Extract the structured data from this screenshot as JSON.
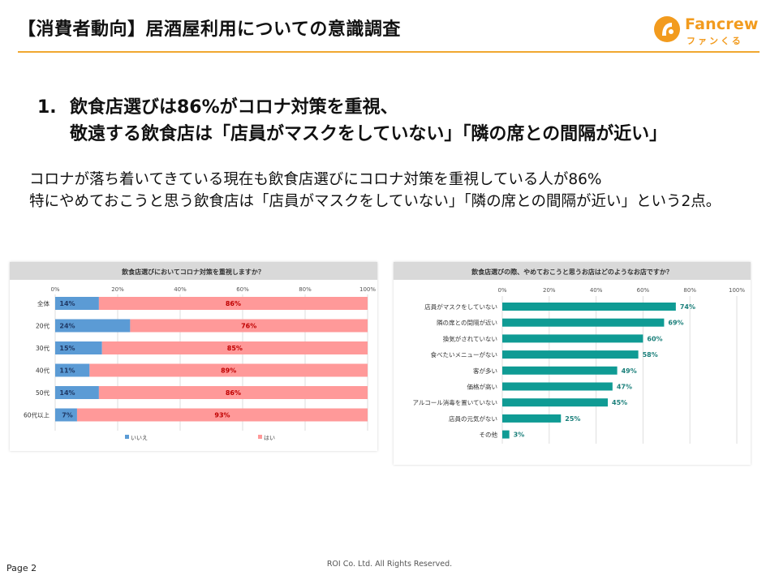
{
  "header": {
    "title": "【消費者動向】居酒屋利用についての意識調査",
    "logo": {
      "word": "Fancrew",
      "kana": "ファンくる",
      "brand_color": "#f29b1e",
      "icon": "fancrew-logo-icon"
    }
  },
  "headline": {
    "number": "1.",
    "line1": "飲食店選びは86%がコロナ対策を重視、",
    "line2": "敬遠する飲食店は「店員がマスクをしていない」「隣の席との間隔が近い」"
  },
  "summary": {
    "line1": "コロナが落ち着いてきている現在も飲食店選びにコロナ対策を重視している人が86%",
    "line2": "特にやめておこうと思う飲食店は「店員がマスクをしていない」「隣の席との間隔が近い」という2点。"
  },
  "chart_data": [
    {
      "type": "bar",
      "stacked": true,
      "orientation": "horizontal",
      "title": "飲食店選びにおいてコロナ対策を重視しますか？",
      "categories": [
        "全体",
        "20代",
        "30代",
        "40代",
        "50代",
        "60代以上"
      ],
      "series": [
        {
          "name": "いいえ",
          "color": "#5b9bd5",
          "values": [
            14,
            24,
            15,
            11,
            14,
            7
          ],
          "labels": [
            "14%",
            "24%",
            "15%",
            "11%",
            "14%",
            "7%"
          ]
        },
        {
          "name": "はい",
          "color": "#ff9999",
          "values": [
            86,
            76,
            85,
            89,
            86,
            93
          ],
          "labels": [
            "86%",
            "76%",
            "85%",
            "89%",
            "86%",
            "93%"
          ]
        }
      ],
      "xlim": [
        0,
        100
      ],
      "ticks": [
        "0%",
        "20%",
        "40%",
        "60%",
        "80%",
        "100%"
      ],
      "grid": true,
      "legend": "bottom"
    },
    {
      "type": "bar",
      "orientation": "horizontal",
      "title": "飲食店選びの際、やめておこうと思うお店はどのようなお店ですか？",
      "categories": [
        "店員がマスクをしていない",
        "隣の席との間隔が近い",
        "換気がされていない",
        "食べたいメニューがない",
        "客が多い",
        "価格が高い",
        "アルコール消毒を置いていない",
        "店員の元気がない",
        "その他"
      ],
      "values": [
        74,
        69,
        60,
        58,
        49,
        47,
        45,
        25,
        3
      ],
      "labels": [
        "74%",
        "69%",
        "60%",
        "58%",
        "49%",
        "47%",
        "45%",
        "25%",
        "3%"
      ],
      "color": "#0f9b94",
      "xlim": [
        0,
        100
      ],
      "ticks": [
        "0%",
        "20%",
        "40%",
        "60%",
        "80%",
        "100%"
      ],
      "grid": true
    }
  ],
  "footer": {
    "copyright": "ROI Co. Ltd. All Rights Reserved.",
    "page": "Page 2"
  }
}
